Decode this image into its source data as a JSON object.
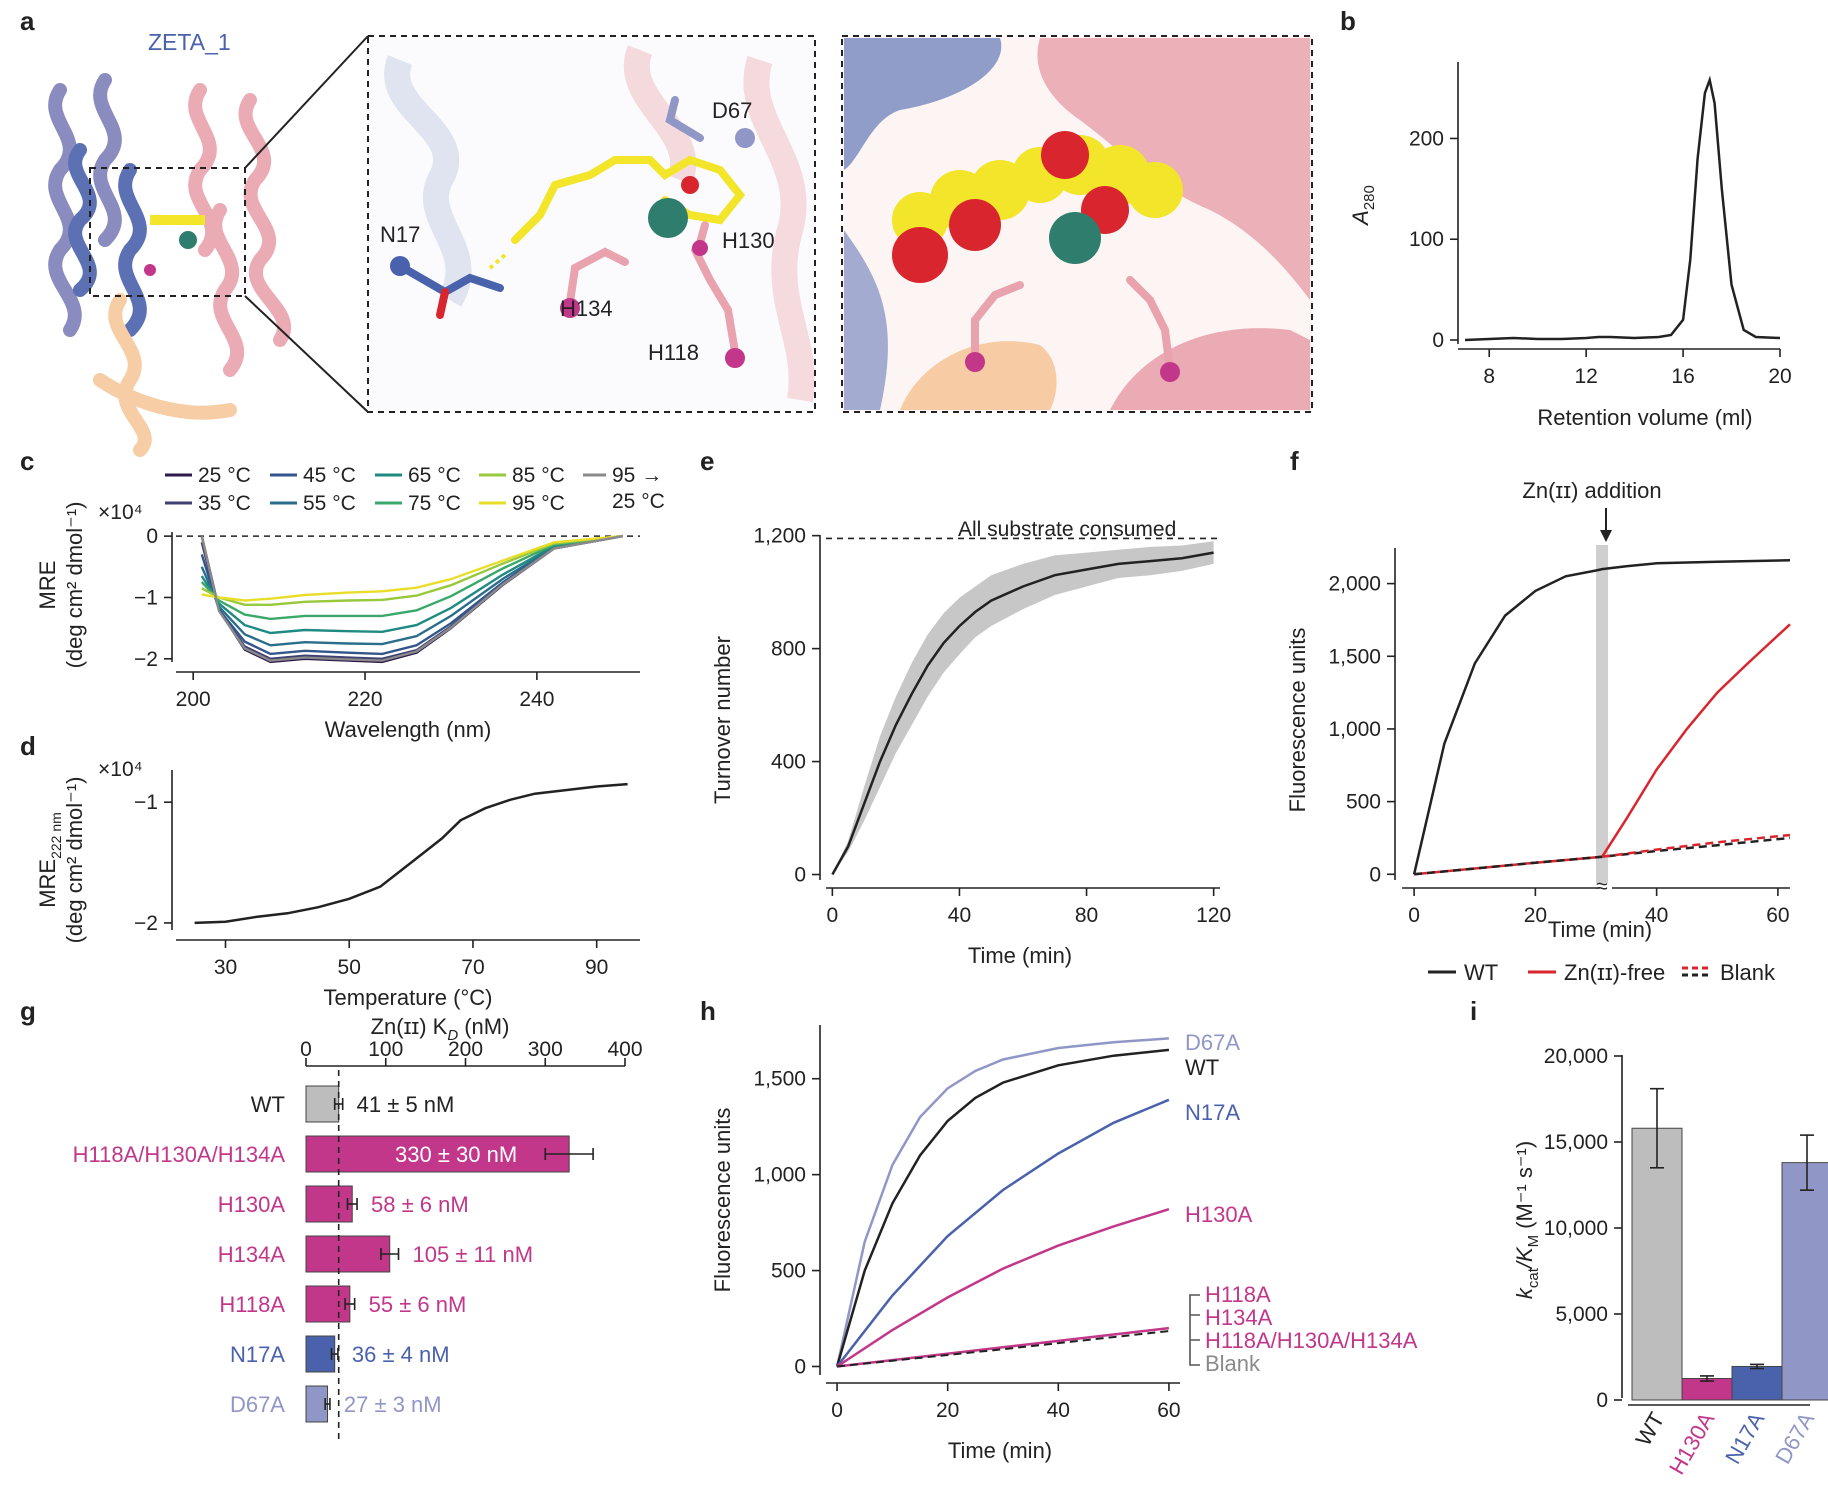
{
  "colors": {
    "ink": "#222222",
    "grey": "#bdbdbd",
    "magenta": "#c2378a",
    "blue": "#4a62ac",
    "lavender": "#9097c6",
    "red": "#d9262e",
    "yellow": "#f2e52a",
    "teal": "#2f7d6d",
    "pink": "#e9a3ae",
    "peach": "#f6c89c",
    "purple": "#7e7fb8"
  },
  "panel_a": {
    "label": "a",
    "protein_name": "ZETA_1",
    "residue_labels": [
      "D67",
      "N17",
      "H130",
      "H134",
      "H118"
    ]
  },
  "chart_data": [
    {
      "panel": "b",
      "type": "line",
      "xlabel": "Retention volume (ml)",
      "ylabel_main": "A",
      "ylabel_sub": "280",
      "xlim": [
        7,
        20
      ],
      "ylim": [
        0,
        260
      ],
      "xticks": [
        "8",
        "12",
        "16",
        "20"
      ],
      "yticks": [
        "0",
        "100",
        "200"
      ],
      "series": [
        {
          "x": [
            7,
            8,
            9,
            10,
            11,
            12,
            12.5,
            13,
            14,
            15,
            15.5,
            16,
            16.3,
            16.6,
            16.9,
            17.1,
            17.3,
            17.6,
            18,
            18.5,
            19,
            20
          ],
          "y": [
            0,
            1,
            2,
            1,
            1,
            2,
            3,
            3,
            2,
            3,
            5,
            20,
            80,
            180,
            245,
            258,
            235,
            150,
            55,
            10,
            3,
            2
          ]
        }
      ]
    },
    {
      "panel": "c",
      "type": "line",
      "xlabel": "Wavelength (nm)",
      "ylabel_main": "MRE",
      "ylabel_units": "(deg cm² dmol⁻¹)",
      "scale_note": "×10⁴",
      "xlim": [
        198,
        252
      ],
      "ylim": [
        -2.15,
        0.1
      ],
      "xticks": [
        "200",
        "220",
        "240"
      ],
      "yticks": [
        "0",
        "−1",
        "−2"
      ],
      "legend": [
        "25 °C",
        "45 °C",
        "65 °C",
        "85 °C",
        "95 →",
        "25 °C",
        "35 °C",
        "55 °C",
        "75 °C",
        "95 °C"
      ],
      "series": [
        {
          "name": "25 °C",
          "color": "#2b1a4a",
          "x": [
            201,
            203,
            206,
            209,
            213,
            218,
            222,
            226,
            230,
            236,
            242,
            250
          ],
          "y": [
            0,
            -1.2,
            -1.85,
            -2.05,
            -2.0,
            -2.03,
            -2.05,
            -1.9,
            -1.5,
            -0.8,
            -0.2,
            0
          ]
        },
        {
          "name": "35 °C",
          "color": "#3f3f72",
          "x": [
            201,
            203,
            206,
            209,
            213,
            218,
            222,
            226,
            230,
            236,
            242,
            250
          ],
          "y": [
            -0.1,
            -1.2,
            -1.8,
            -2.0,
            -1.95,
            -1.98,
            -2.0,
            -1.86,
            -1.47,
            -0.79,
            -0.2,
            0
          ]
        },
        {
          "name": "45 °C",
          "color": "#34558c",
          "x": [
            201,
            203,
            206,
            209,
            213,
            218,
            222,
            226,
            230,
            236,
            242,
            250
          ],
          "y": [
            -0.3,
            -1.2,
            -1.72,
            -1.92,
            -1.87,
            -1.9,
            -1.92,
            -1.78,
            -1.42,
            -0.76,
            -0.19,
            0
          ]
        },
        {
          "name": "55 °C",
          "color": "#2a6e8c",
          "x": [
            201,
            203,
            206,
            209,
            213,
            218,
            222,
            226,
            230,
            236,
            242,
            250
          ],
          "y": [
            -0.5,
            -1.15,
            -1.6,
            -1.78,
            -1.73,
            -1.75,
            -1.76,
            -1.63,
            -1.3,
            -0.7,
            -0.18,
            0
          ]
        },
        {
          "name": "65 °C",
          "color": "#1f8a82",
          "x": [
            201,
            203,
            206,
            209,
            213,
            218,
            222,
            226,
            230,
            236,
            242,
            250
          ],
          "y": [
            -0.65,
            -1.1,
            -1.45,
            -1.58,
            -1.53,
            -1.55,
            -1.56,
            -1.45,
            -1.17,
            -0.63,
            -0.16,
            0
          ]
        },
        {
          "name": "75 °C",
          "color": "#3aa86a",
          "x": [
            201,
            203,
            206,
            209,
            213,
            218,
            222,
            226,
            230,
            236,
            242,
            250
          ],
          "y": [
            -0.75,
            -1.05,
            -1.28,
            -1.35,
            -1.3,
            -1.3,
            -1.3,
            -1.21,
            -0.98,
            -0.53,
            -0.14,
            0
          ]
        },
        {
          "name": "85 °C",
          "color": "#98c83c",
          "x": [
            201,
            203,
            206,
            209,
            213,
            218,
            222,
            226,
            230,
            236,
            242,
            250
          ],
          "y": [
            -0.85,
            -1.0,
            -1.12,
            -1.12,
            -1.07,
            -1.05,
            -1.04,
            -0.97,
            -0.8,
            -0.45,
            -0.12,
            0
          ]
        },
        {
          "name": "95 °C",
          "color": "#e8de2a",
          "x": [
            201,
            203,
            206,
            209,
            213,
            218,
            222,
            226,
            230,
            236,
            242,
            250
          ],
          "y": [
            -0.95,
            -1.0,
            -1.05,
            -1.02,
            -0.96,
            -0.92,
            -0.9,
            -0.84,
            -0.7,
            -0.4,
            -0.1,
            0
          ]
        },
        {
          "name": "95 → 25 °C",
          "color": "#8a8a8a",
          "x": [
            201,
            203,
            206,
            209,
            213,
            218,
            222,
            226,
            230,
            236,
            242,
            250
          ],
          "y": [
            0,
            -1.22,
            -1.83,
            -2.03,
            -1.98,
            -2.01,
            -2.03,
            -1.88,
            -1.49,
            -0.79,
            -0.2,
            0
          ]
        }
      ]
    },
    {
      "panel": "d",
      "type": "line",
      "xlabel": "Temperature (°C)",
      "ylabel_main": "MRE",
      "ylabel_sub": "222 nm",
      "ylabel_units": "(deg cm² dmol⁻¹)",
      "scale_note": "×10⁴",
      "xlim": [
        22,
        97
      ],
      "ylim": [
        -2.1,
        -0.75
      ],
      "xticks": [
        "30",
        "50",
        "70",
        "90"
      ],
      "yticks": [
        "−1",
        "−2"
      ],
      "series": [
        {
          "x": [
            25,
            30,
            35,
            40,
            45,
            50,
            55,
            60,
            65,
            68,
            72,
            76,
            80,
            85,
            90,
            95
          ],
          "y": [
            -2.0,
            -1.99,
            -1.95,
            -1.92,
            -1.87,
            -1.8,
            -1.7,
            -1.5,
            -1.3,
            -1.15,
            -1.05,
            -0.98,
            -0.93,
            -0.9,
            -0.87,
            -0.85
          ]
        }
      ]
    },
    {
      "panel": "e",
      "type": "line",
      "xlabel": "Time (min)",
      "ylabel": "Turnover number",
      "xlim": [
        -2,
        122
      ],
      "ylim": [
        -30,
        1220
      ],
      "xticks": [
        "0",
        "40",
        "80",
        "120"
      ],
      "yticks": [
        "0",
        "400",
        "800",
        "1,200"
      ],
      "reference_value": 1190,
      "annotation": "All substrate consumed",
      "series": [
        {
          "x": [
            0,
            5,
            10,
            15,
            20,
            25,
            30,
            35,
            40,
            45,
            50,
            60,
            70,
            80,
            90,
            100,
            110,
            120
          ],
          "y": [
            0,
            100,
            250,
            400,
            530,
            640,
            740,
            820,
            880,
            930,
            970,
            1020,
            1060,
            1080,
            1100,
            1110,
            1120,
            1140
          ],
          "band": [
            0,
            20,
            60,
            90,
            100,
            110,
            110,
            105,
            100,
            90,
            90,
            80,
            70,
            60,
            50,
            50,
            45,
            40
          ]
        }
      ]
    },
    {
      "panel": "f",
      "type": "line",
      "xlabel": "Time (min)",
      "ylabel": "Fluorescence units",
      "xlim": [
        -2,
        62
      ],
      "ylim": [
        -60,
        2300
      ],
      "xticks": [
        "0",
        "20",
        "40",
        "60"
      ],
      "yticks": [
        "0",
        "500",
        "1,000",
        "1,500",
        "2,000"
      ],
      "event_x": 31,
      "event_label": "Zn(ɪɪ) addition",
      "legend": [
        "WT",
        "Zn(ɪɪ)-free",
        "Blank"
      ],
      "series": [
        {
          "name": "WT",
          "color": "#222222",
          "x": [
            0,
            5,
            10,
            15,
            20,
            25,
            30,
            31,
            35,
            40,
            50,
            62
          ],
          "y": [
            0,
            900,
            1450,
            1780,
            1950,
            2050,
            2090,
            2100,
            2120,
            2140,
            2150,
            2160
          ]
        },
        {
          "name": "Zn(ɪɪ)-free",
          "color": "#d9262e",
          "x": [
            0,
            10,
            20,
            31,
            35,
            40,
            45,
            50,
            55,
            62
          ],
          "y": [
            0,
            40,
            80,
            120,
            380,
            720,
            1000,
            1250,
            1450,
            1720
          ]
        },
        {
          "name": "Blank",
          "color": "#222222",
          "x": [
            0,
            10,
            20,
            31,
            40,
            50,
            62
          ],
          "y": [
            0,
            40,
            80,
            120,
            160,
            200,
            250
          ]
        },
        {
          "name": "Blank-red",
          "color": "#d9262e",
          "x": [
            31,
            40,
            50,
            62
          ],
          "y": [
            120,
            170,
            220,
            270
          ]
        }
      ]
    },
    {
      "panel": "g",
      "type": "bar",
      "xlabel": "Zn(ɪɪ) K",
      "xlabel_sub": "D",
      "xlabel_unit": "(nM)",
      "xlim": [
        0,
        400
      ],
      "xticks": [
        "0",
        "100",
        "200",
        "300",
        "400"
      ],
      "reference_value": 41,
      "categories": [
        "WT",
        "H118A/H130A/H134A",
        "H130A",
        "H134A",
        "H118A",
        "N17A",
        "D67A"
      ],
      "values": [
        41,
        330,
        58,
        105,
        55,
        36,
        27
      ],
      "errors": [
        5,
        30,
        6,
        11,
        6,
        4,
        3
      ],
      "value_labels": [
        "41 ± 5 nM",
        "330 ± 30 nM",
        "58 ± 6 nM",
        "105 ± 11 nM",
        "55 ± 6 nM",
        "36 ± 4 nM",
        "27 ± 3 nM"
      ],
      "bar_colors": [
        "#bdbdbd",
        "#c2378a",
        "#c2378a",
        "#c2378a",
        "#c2378a",
        "#4a62ac",
        "#9097c6"
      ],
      "label_colors": [
        "#222222",
        "#c2378a",
        "#c2378a",
        "#c2378a",
        "#c2378a",
        "#4a62ac",
        "#9097c6"
      ]
    },
    {
      "panel": "h",
      "type": "line",
      "xlabel": "Time (min)",
      "ylabel": "Fluorescence units",
      "xlim": [
        -2,
        62
      ],
      "ylim": [
        -60,
        1780
      ],
      "xticks": [
        "0",
        "20",
        "40",
        "60"
      ],
      "yticks": [
        "0",
        "500",
        "1,000",
        "1,500"
      ],
      "group_labels": [
        "H118A",
        "H134A",
        "H118A/H130A/H134A",
        "Blank"
      ],
      "group_label_colors": [
        "#c2378a",
        "#c2378a",
        "#c2378a",
        "#8a8a8a"
      ],
      "series": [
        {
          "name": "D67A",
          "color": "#9097c6",
          "x": [
            0,
            5,
            10,
            15,
            20,
            25,
            30,
            40,
            50,
            60
          ],
          "y": [
            0,
            650,
            1050,
            1300,
            1450,
            1540,
            1600,
            1660,
            1690,
            1710
          ]
        },
        {
          "name": "WT",
          "color": "#222222",
          "x": [
            0,
            5,
            10,
            15,
            20,
            25,
            30,
            40,
            50,
            60
          ],
          "y": [
            0,
            500,
            850,
            1100,
            1280,
            1400,
            1480,
            1570,
            1620,
            1650
          ]
        },
        {
          "name": "N17A",
          "color": "#4a62ac",
          "x": [
            0,
            10,
            20,
            30,
            40,
            50,
            60
          ],
          "y": [
            0,
            370,
            680,
            920,
            1110,
            1270,
            1390
          ]
        },
        {
          "name": "H130A",
          "color": "#c2378a",
          "x": [
            0,
            10,
            20,
            30,
            40,
            50,
            60
          ],
          "y": [
            0,
            190,
            360,
            510,
            630,
            730,
            820
          ]
        },
        {
          "name": "H118A",
          "color": "#c2378a",
          "x": [
            0,
            30,
            60
          ],
          "y": [
            0,
            100,
            200
          ]
        },
        {
          "name": "Blank",
          "color": "#222222",
          "x": [
            0,
            30,
            60
          ],
          "y": [
            0,
            90,
            185
          ]
        }
      ]
    },
    {
      "panel": "i",
      "type": "bar",
      "ylabel_main": "k",
      "ylabel_sub1": "cat",
      "ylabel_mid": "/K",
      "ylabel_sub2": "M",
      "ylabel_units": "(M⁻¹ s⁻¹)",
      "ylim": [
        0,
        20000
      ],
      "yticks": [
        "0",
        "5,000",
        "10,000",
        "15,000",
        "20,000"
      ],
      "categories": [
        "WT",
        "H130A",
        "N17A",
        "D67A"
      ],
      "values": [
        15800,
        1250,
        1950,
        13800
      ],
      "errors": [
        2300,
        150,
        120,
        1600
      ],
      "bar_colors": [
        "#bdbdbd",
        "#c2378a",
        "#4a62ac",
        "#9097c6"
      ],
      "label_colors": [
        "#222222",
        "#c2378a",
        "#4a62ac",
        "#9097c6"
      ]
    }
  ]
}
